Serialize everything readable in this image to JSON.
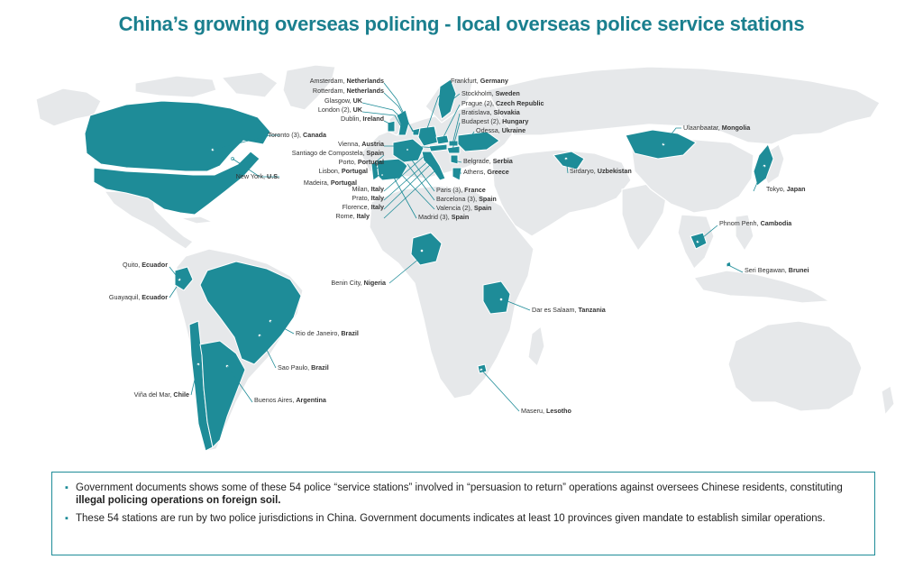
{
  "title": "China’s growing overseas policing - local overseas police service stations",
  "stations": [
    {
      "city": "Amsterdam, ",
      "country": "Netherlands"
    },
    {
      "city": "Rotterdam, ",
      "country": "Netherlands"
    },
    {
      "city": "Glasgow, ",
      "country": "UK"
    },
    {
      "city": "London (2), ",
      "country": "UK"
    },
    {
      "city": "Dublin, ",
      "country": "Ireland"
    },
    {
      "city": "Toronto (3), ",
      "country": "Canada"
    },
    {
      "city": "Vienna, ",
      "country": "Austria"
    },
    {
      "city": "Santiago de Compostela, ",
      "country": "Spain"
    },
    {
      "city": "Porto, ",
      "country": "Portugal"
    },
    {
      "city": "Lisbon, ",
      "country": "Portugal"
    },
    {
      "city": "Madeira, ",
      "country": "Portugal"
    },
    {
      "city": "Milan, ",
      "country": "Italy"
    },
    {
      "city": "Prato, ",
      "country": "Italy"
    },
    {
      "city": "Florence, ",
      "country": "Italy"
    },
    {
      "city": "Rome, ",
      "country": "Italy"
    },
    {
      "city": "New York, ",
      "country": "U.S."
    },
    {
      "city": "Frankfurt, ",
      "country": "Germany"
    },
    {
      "city": "Stockholm, ",
      "country": "Sweden"
    },
    {
      "city": "Prague (2), ",
      "country": "Czech Republic"
    },
    {
      "city": "Bratislava, ",
      "country": "Slovakia"
    },
    {
      "city": "Budapest (2), ",
      "country": "Hungary"
    },
    {
      "city": "Odessa, ",
      "country": "Ukraine"
    },
    {
      "city": "Belgrade, ",
      "country": "Serbia"
    },
    {
      "city": "Athens, ",
      "country": "Greece"
    },
    {
      "city": "Paris (3), ",
      "country": "France"
    },
    {
      "city": "Barcelona (3), ",
      "country": "Spain"
    },
    {
      "city": "Valencia (2), ",
      "country": "Spain"
    },
    {
      "city": "Madrid (3), ",
      "country": "Spain"
    },
    {
      "city": "Ulaanbaatar, ",
      "country": "Mongolia"
    },
    {
      "city": "Sirdaryo, ",
      "country": "Uzbekistan"
    },
    {
      "city": "Tokyo, ",
      "country": "Japan"
    },
    {
      "city": "Phnom Penh, ",
      "country": "Cambodia"
    },
    {
      "city": "Seri Begawan, ",
      "country": "Brunei"
    },
    {
      "city": "Quito, ",
      "country": "Ecuador"
    },
    {
      "city": "Guayaquil, ",
      "country": "Ecuador"
    },
    {
      "city": "Benin City, ",
      "country": "Nigeria"
    },
    {
      "city": "Dar es Salaam, ",
      "country": "Tanzania"
    },
    {
      "city": "Rio de Janeiro, ",
      "country": "Brazil"
    },
    {
      "city": "Sao Paulo, ",
      "country": "Brazil"
    },
    {
      "city": "Viña del Mar, ",
      "country": "Chile"
    },
    {
      "city": "Buenos Aires, ",
      "country": "Argentina"
    },
    {
      "city": "Maseru, ",
      "country": "Lesotho"
    }
  ],
  "notes": [
    {
      "text": "Government documents shows some of these 54 police “service stations” involved in “persuasion to return” operations against oversees Chinese residents, constituting ",
      "bold": "illegal policing operations on foreign soil."
    },
    {
      "text": "These 54 stations are run by two police jurisdictions in China. Government documents indicates at least 10 provinces given mandate to establish similar operations.",
      "bold": ""
    }
  ],
  "colors": {
    "highlight": "#1e8c98",
    "land": "#e6e8ea",
    "title": "#1a7f8e"
  }
}
